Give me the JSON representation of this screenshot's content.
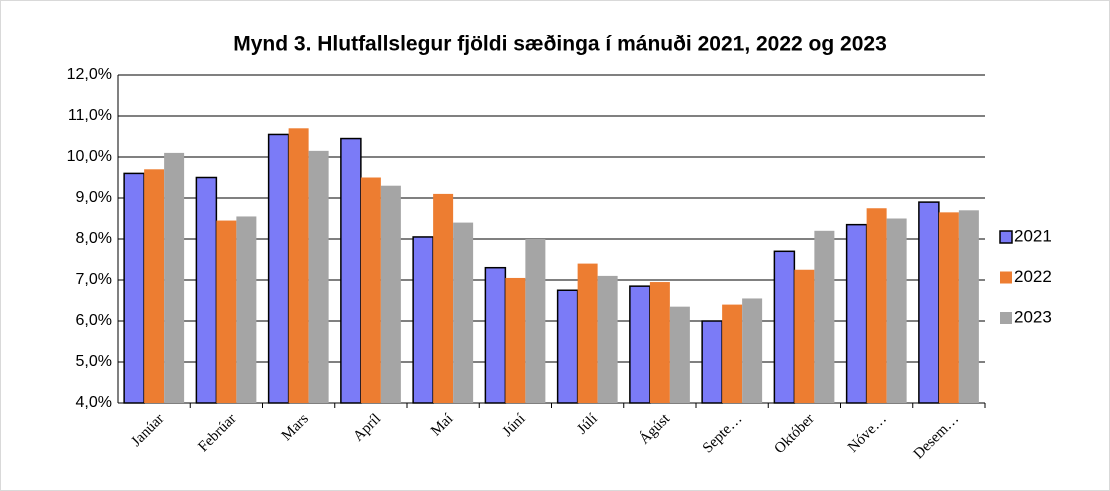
{
  "chart_data": {
    "type": "bar",
    "title": "Mynd 3.  Hlutfallslegur fjöldi sæðinga í mánuði  2021, 2022 og 2023",
    "categories": [
      "Janúar",
      "Febrúar",
      "Mars",
      "Apríl",
      "Maí",
      "Júní",
      "Júlí",
      "Ágúst",
      "Septe…",
      "Október",
      "Nóve…",
      "Desem…"
    ],
    "series": [
      {
        "name": "2021",
        "color": "#7b7bf7",
        "values": [
          9.6,
          9.5,
          10.55,
          10.45,
          8.05,
          7.3,
          6.75,
          6.85,
          6.0,
          7.7,
          8.35,
          8.9
        ]
      },
      {
        "name": "2022",
        "color": "#ed7d31",
        "values": [
          9.7,
          8.45,
          10.7,
          9.5,
          9.1,
          7.05,
          7.4,
          6.95,
          6.4,
          7.25,
          8.75,
          8.65
        ]
      },
      {
        "name": "2023",
        "color": "#a5a5a5",
        "values": [
          10.1,
          8.55,
          10.15,
          9.3,
          8.4,
          8.0,
          7.1,
          6.35,
          6.55,
          8.2,
          8.5,
          8.7
        ]
      }
    ],
    "ylim": [
      4,
      12
    ],
    "yticks": [
      {
        "value": 4,
        "label": "4,0%"
      },
      {
        "value": 5,
        "label": "5,0%"
      },
      {
        "value": 6,
        "label": "6,0%"
      },
      {
        "value": 7,
        "label": "7,0%"
      },
      {
        "value": 8,
        "label": "8,0%"
      },
      {
        "value": 9,
        "label": "9,0%"
      },
      {
        "value": 10,
        "label": "10,0%"
      },
      {
        "value": 11,
        "label": "11,0%"
      },
      {
        "value": 12,
        "label": "12,0%"
      }
    ],
    "grid": true,
    "legend": "right"
  }
}
